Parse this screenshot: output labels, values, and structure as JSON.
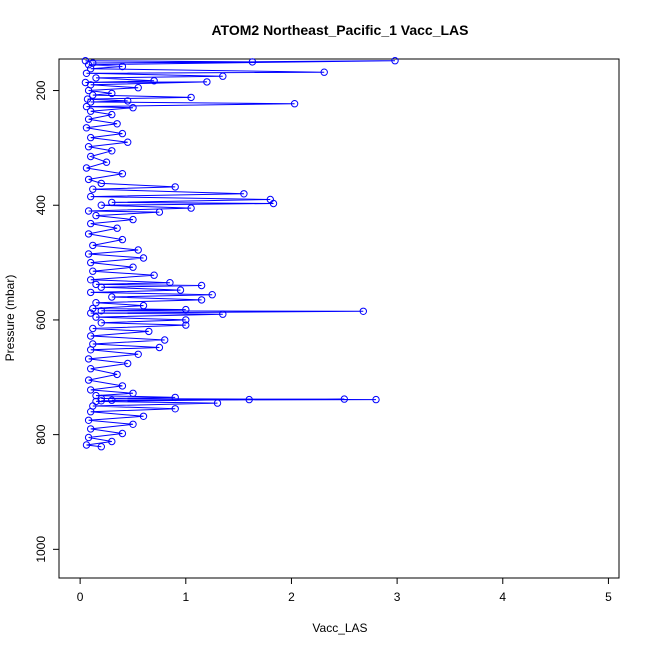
{
  "chart_data": {
    "type": "line",
    "title": "ATOM2 Northeast_Pacific_1 Vacc_LAS",
    "xlabel": "Vacc_LAS",
    "ylabel": "Pressure (mbar)",
    "xlim": [
      -0.2,
      5.1
    ],
    "ylim": [
      1050,
      145
    ],
    "y_reversed": true,
    "x_ticks": [
      0,
      1,
      2,
      3,
      4,
      5
    ],
    "y_ticks": [
      200,
      400,
      600,
      800,
      1000
    ],
    "grid": false,
    "marker": "open-circle",
    "line_color": "#0000ff",
    "series": [
      {
        "values_description": "Vacc_LAS vs pressure profile",
        "points": [
          [
            0.05,
            148
          ],
          [
            1.63,
            150
          ],
          [
            0.12,
            152
          ],
          [
            2.98,
            148
          ],
          [
            0.08,
            155
          ],
          [
            0.4,
            158
          ],
          [
            0.1,
            162
          ],
          [
            2.31,
            168
          ],
          [
            0.06,
            170
          ],
          [
            1.35,
            175
          ],
          [
            0.15,
            178
          ],
          [
            0.7,
            183
          ],
          [
            0.05,
            186
          ],
          [
            1.2,
            185
          ],
          [
            0.1,
            190
          ],
          [
            0.55,
            195
          ],
          [
            0.08,
            200
          ],
          [
            0.3,
            205
          ],
          [
            0.12,
            208
          ],
          [
            1.05,
            212
          ],
          [
            0.07,
            215
          ],
          [
            0.45,
            218
          ],
          [
            0.1,
            220
          ],
          [
            2.03,
            223
          ],
          [
            0.06,
            228
          ],
          [
            0.5,
            230
          ],
          [
            0.1,
            236
          ],
          [
            0.3,
            242
          ],
          [
            0.08,
            250
          ],
          [
            0.35,
            258
          ],
          [
            0.06,
            265
          ],
          [
            0.4,
            275
          ],
          [
            0.1,
            282
          ],
          [
            0.45,
            290
          ],
          [
            0.08,
            298
          ],
          [
            0.3,
            305
          ],
          [
            0.1,
            315
          ],
          [
            0.25,
            325
          ],
          [
            0.06,
            335
          ],
          [
            0.4,
            345
          ],
          [
            0.08,
            355
          ],
          [
            0.2,
            362
          ],
          [
            0.9,
            368
          ],
          [
            0.12,
            372
          ],
          [
            1.55,
            380
          ],
          [
            0.1,
            385
          ],
          [
            1.8,
            390
          ],
          [
            0.3,
            395
          ],
          [
            1.83,
            397
          ],
          [
            0.2,
            400
          ],
          [
            1.05,
            405
          ],
          [
            0.08,
            410
          ],
          [
            0.75,
            412
          ],
          [
            0.15,
            418
          ],
          [
            0.5,
            425
          ],
          [
            0.1,
            432
          ],
          [
            0.35,
            440
          ],
          [
            0.08,
            450
          ],
          [
            0.4,
            460
          ],
          [
            0.12,
            470
          ],
          [
            0.55,
            478
          ],
          [
            0.08,
            485
          ],
          [
            0.6,
            492
          ],
          [
            0.1,
            500
          ],
          [
            0.5,
            508
          ],
          [
            0.12,
            515
          ],
          [
            0.7,
            522
          ],
          [
            0.1,
            530
          ],
          [
            0.85,
            535
          ],
          [
            0.15,
            538
          ],
          [
            1.15,
            540
          ],
          [
            0.2,
            543
          ],
          [
            0.95,
            548
          ],
          [
            0.1,
            552
          ],
          [
            1.25,
            556
          ],
          [
            0.3,
            560
          ],
          [
            1.15,
            565
          ],
          [
            0.15,
            570
          ],
          [
            0.6,
            575
          ],
          [
            0.12,
            580
          ],
          [
            1.0,
            582
          ],
          [
            0.2,
            584
          ],
          [
            2.68,
            585
          ],
          [
            0.1,
            588
          ],
          [
            1.35,
            590
          ],
          [
            0.15,
            595
          ],
          [
            1.0,
            600
          ],
          [
            0.2,
            605
          ],
          [
            1.0,
            609
          ],
          [
            0.12,
            615
          ],
          [
            0.65,
            620
          ],
          [
            0.1,
            628
          ],
          [
            0.8,
            635
          ],
          [
            0.12,
            642
          ],
          [
            0.75,
            648
          ],
          [
            0.1,
            652
          ],
          [
            0.55,
            660
          ],
          [
            0.08,
            668
          ],
          [
            0.45,
            676
          ],
          [
            0.1,
            685
          ],
          [
            0.35,
            695
          ],
          [
            0.08,
            705
          ],
          [
            0.4,
            715
          ],
          [
            0.1,
            722
          ],
          [
            0.5,
            728
          ],
          [
            0.15,
            732
          ],
          [
            0.9,
            735
          ],
          [
            0.2,
            737
          ],
          [
            2.8,
            739
          ],
          [
            0.3,
            740
          ],
          [
            2.5,
            738
          ],
          [
            0.2,
            741
          ],
          [
            1.6,
            739
          ],
          [
            0.15,
            742
          ],
          [
            1.3,
            745
          ],
          [
            0.12,
            750
          ],
          [
            0.9,
            755
          ],
          [
            0.1,
            760
          ],
          [
            0.6,
            768
          ],
          [
            0.08,
            775
          ],
          [
            0.5,
            782
          ],
          [
            0.1,
            790
          ],
          [
            0.4,
            798
          ],
          [
            0.08,
            805
          ],
          [
            0.3,
            812
          ],
          [
            0.06,
            818
          ],
          [
            0.2,
            821
          ]
        ]
      }
    ]
  }
}
